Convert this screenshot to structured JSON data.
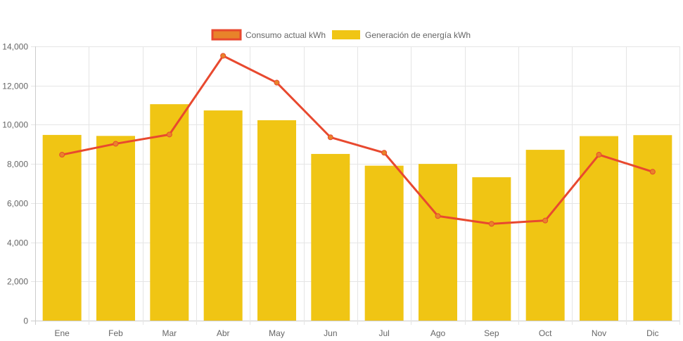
{
  "chart_data": {
    "type": "bar",
    "title": "",
    "xlabel": "",
    "ylabel": "",
    "ylim": [
      0,
      14000
    ],
    "yticks": [
      "0",
      "2,000",
      "4,000",
      "6,000",
      "8,000",
      "10,000",
      "12,000",
      "14,000"
    ],
    "ytick_values": [
      0,
      2000,
      4000,
      6000,
      8000,
      10000,
      12000,
      14000
    ],
    "grid": true,
    "legend_position": "top",
    "categories": [
      "Ene",
      "Feb",
      "Mar",
      "Abr",
      "May",
      "Jun",
      "Jul",
      "Ago",
      "Sep",
      "Oct",
      "Nov",
      "Dic"
    ],
    "series": [
      {
        "name": "Consumo actual kWh",
        "type": "line",
        "color": "#e8492f",
        "point_color": "#e8832a",
        "legend_fill": "#e8832a",
        "legend_border": "#e8492f",
        "values": [
          8470,
          9030,
          9500,
          13520,
          12150,
          9360,
          8570,
          5340,
          4940,
          5110,
          8470,
          7600
        ]
      },
      {
        "name": "Generación de energía kWh",
        "type": "bar",
        "color": "#f0c514",
        "values": [
          9480,
          9430,
          11050,
          10730,
          10230,
          8510,
          7910,
          8000,
          7320,
          8720,
          9420,
          9470
        ]
      }
    ]
  }
}
